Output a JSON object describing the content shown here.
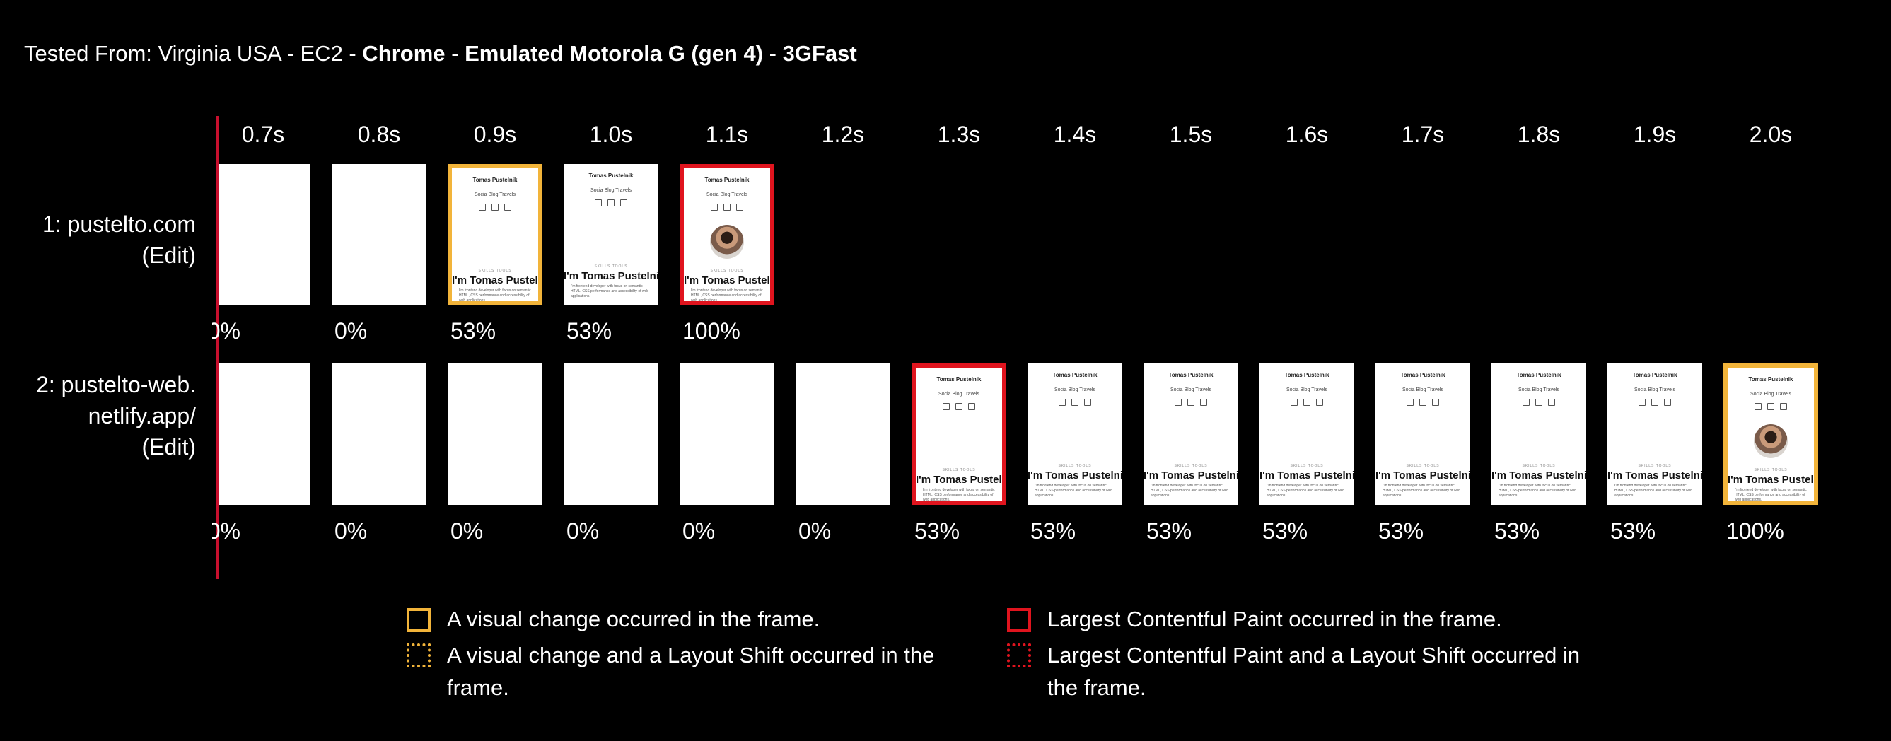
{
  "header": {
    "prefix": "Tested From: Virginia USA - EC2 - ",
    "browser": "Chrome",
    "sep1": " - ",
    "device": "Emulated Motorola G (gen 4)",
    "sep2": " - ",
    "connection": "3GFast"
  },
  "ticks": [
    "0.7s",
    "0.8s",
    "0.9s",
    "1.0s",
    "1.1s",
    "1.2s",
    "1.3s",
    "1.4s",
    "1.5s",
    "1.6s",
    "1.7s",
    "1.8s",
    "1.9s",
    "2.0s"
  ],
  "rows": [
    {
      "label_line1": "1: pustelto.com",
      "label_line2": "(Edit)",
      "frames": [
        {
          "state": "blank",
          "pct": "0%"
        },
        {
          "state": "blank",
          "pct": "0%"
        },
        {
          "state": "page",
          "border": "visual",
          "pct": "53%"
        },
        {
          "state": "page",
          "pct": "53%"
        },
        {
          "state": "page-avatar",
          "border": "lcp",
          "pct": "100%"
        }
      ]
    },
    {
      "label_line1": "2: pustelto-web.",
      "label_line2": "netlify.app/",
      "label_line3": "(Edit)",
      "frames": [
        {
          "state": "blank",
          "pct": "0%"
        },
        {
          "state": "blank",
          "pct": "0%"
        },
        {
          "state": "blank",
          "pct": "0%"
        },
        {
          "state": "blank",
          "pct": "0%"
        },
        {
          "state": "blank",
          "pct": "0%"
        },
        {
          "state": "blank",
          "pct": "0%"
        },
        {
          "state": "page",
          "border": "lcp",
          "pct": "53%"
        },
        {
          "state": "page",
          "pct": "53%"
        },
        {
          "state": "page",
          "pct": "53%"
        },
        {
          "state": "page",
          "pct": "53%"
        },
        {
          "state": "page",
          "pct": "53%"
        },
        {
          "state": "page",
          "pct": "53%"
        },
        {
          "state": "page",
          "pct": "53%"
        },
        {
          "state": "page-avatar",
          "border": "visual",
          "pct": "100%"
        }
      ]
    }
  ],
  "thumbnail": {
    "name": "Tomas Pustelnik",
    "nav": "Socia  Blog  Travels",
    "tag": "SKILLS  TOOLS",
    "title": "I'm Tomas Pustelnik",
    "text": "I'm frontend developer with focus on semantic HTML, CSS performance and accessibility of web applications."
  },
  "legend": [
    {
      "style": "visual-solid",
      "text": "A visual change occurred in the frame."
    },
    {
      "style": "visual-dotted",
      "text": "A visual change and a Layout Shift occurred in the frame."
    },
    {
      "style": "lcp-solid",
      "text": "Largest Contentful Paint occurred in the frame."
    },
    {
      "style": "lcp-dotted",
      "text": "Largest Contentful Paint and a Layout Shift occurred in the frame."
    }
  ],
  "colors": {
    "visual": "#f2b43a",
    "lcp": "#e0141e",
    "timeline": "#c8102e"
  }
}
